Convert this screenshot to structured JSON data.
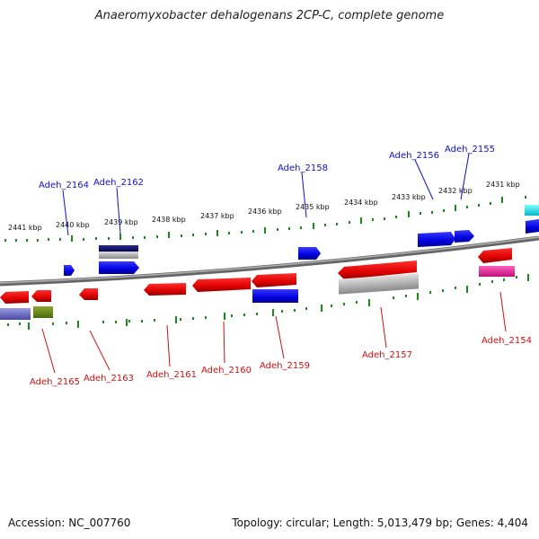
{
  "title": "Anaeromyxobacter dehalogenans 2CP-C, complete genome",
  "footer": {
    "accession": "Accession: NC_007760",
    "summary": "Topology: circular; Length: 5,013,479 bp; Genes: 4,404"
  },
  "colors": {
    "backbone": "#808080",
    "tick": "#1a8a1a",
    "forward_label": "#1010c8",
    "reverse_label": "#d01010"
  },
  "ticks": [
    "2441 kbp",
    "2440 kbp",
    "2439 kbp",
    "2438 kbp",
    "2437 kbp",
    "2436 kbp",
    "2435 kbp",
    "2434 kbp",
    "2433 kbp",
    "2432 kbp",
    "2431 kbp"
  ],
  "forward_labels": [
    "Adeh_2164",
    "Adeh_2162",
    "Adeh_2158",
    "Adeh_2156",
    "Adeh_2155"
  ],
  "reverse_labels": [
    "Adeh_2165",
    "Adeh_2163",
    "Adeh_2161",
    "Adeh_2160",
    "Adeh_2159",
    "Adeh_2157",
    "Adeh_2154"
  ]
}
